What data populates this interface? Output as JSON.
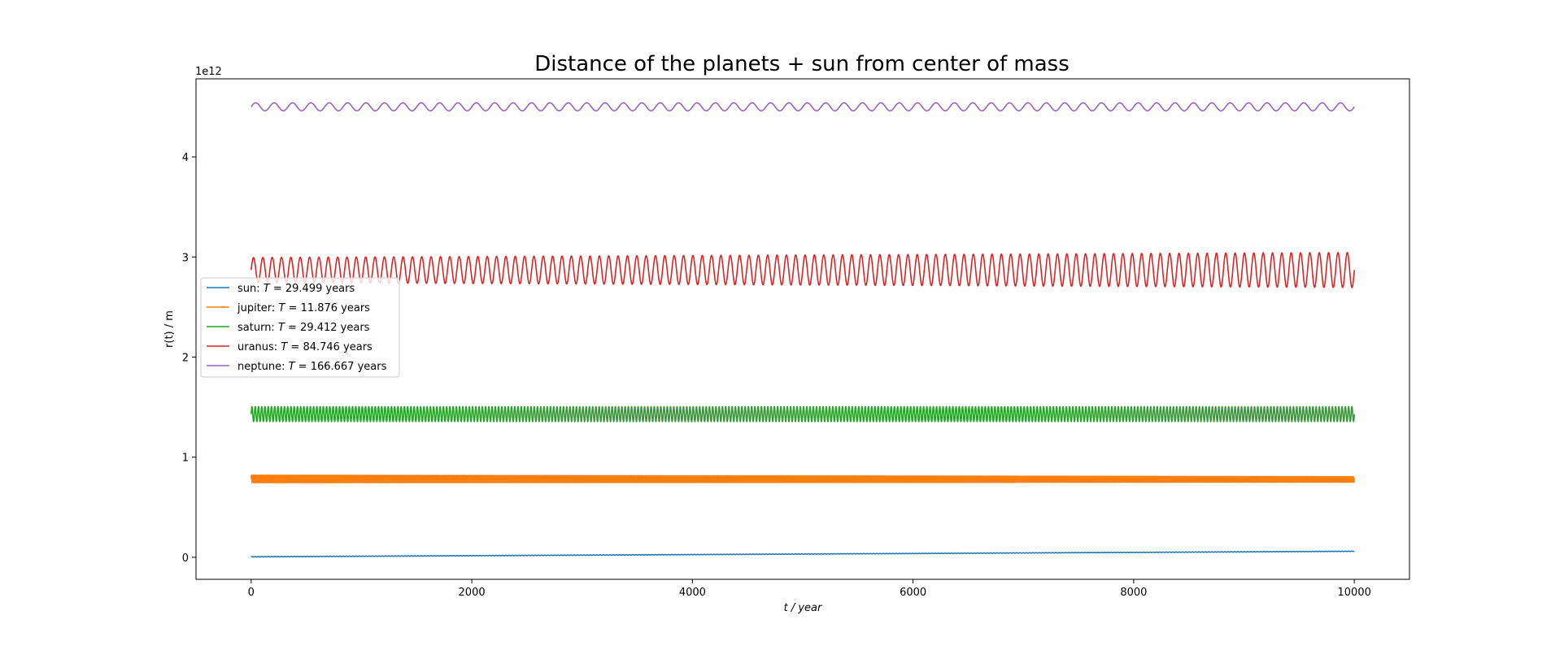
{
  "chart_data": {
    "type": "line",
    "title": "Distance of the planets + sun from center of mass",
    "xlabel": "t / year",
    "ylabel": "r(t) / m",
    "offset_text": "1e12",
    "xlim": [
      -500,
      10500
    ],
    "ylim": [
      -220000000000.0,
      4780000000000.0
    ],
    "x_ticks": [
      0,
      2000,
      4000,
      6000,
      8000,
      10000
    ],
    "x_tick_labels": [
      "0",
      "2000",
      "4000",
      "6000",
      "8000",
      "10000"
    ],
    "y_ticks": [
      0,
      1000000000000.0,
      2000000000000.0,
      3000000000000.0,
      4000000000000.0
    ],
    "y_tick_labels": [
      "0",
      "1",
      "2",
      "3",
      "4"
    ],
    "grid": false,
    "legend_position": "center-left",
    "x_range": [
      0,
      10000
    ],
    "series": [
      {
        "name": "sun",
        "legend_label": "sun: T = 29.499 years",
        "legend_prefix": "sun: ",
        "legend_suffix": " = 29.499 years",
        "period": 29.499,
        "color": "#1f77b4",
        "mean_start": 5000000000.0,
        "mean_end": 60000000000.0,
        "amp_start": 2000000000.0,
        "amp_end": 2000000000.0
      },
      {
        "name": "jupiter",
        "legend_label": "jupiter: T = 11.876 years",
        "legend_prefix": "jupiter: ",
        "legend_suffix": " = 11.876 years",
        "period": 11.876,
        "color": "#ff7f0e",
        "mean_start": 783000000000.0,
        "mean_end": 778000000000.0,
        "amp_start": 38000000000.0,
        "amp_end": 28000000000.0
      },
      {
        "name": "saturn",
        "legend_label": "saturn: T = 29.412 years",
        "legend_prefix": "saturn: ",
        "legend_suffix": " = 29.412 years",
        "period": 29.412,
        "color": "#2ca02c",
        "mean_start": 1430000000000.0,
        "mean_end": 1430000000000.0,
        "amp_start": 75000000000.0,
        "amp_end": 75000000000.0
      },
      {
        "name": "uranus",
        "legend_label": "uranus: T = 84.746 years",
        "legend_prefix": "uranus: ",
        "legend_suffix": " = 84.746 years",
        "period": 84.746,
        "color": "#d62728",
        "mean_start": 2870000000000.0,
        "mean_end": 2870000000000.0,
        "amp_start": 125000000000.0,
        "amp_end": 175000000000.0
      },
      {
        "name": "neptune",
        "legend_label": "neptune: T = 166.667 years",
        "legend_prefix": "neptune: ",
        "legend_suffix": " = 166.667 years",
        "period": 166.667,
        "color": "#9467bd",
        "mean_start": 4500000000000.0,
        "mean_end": 4500000000000.0,
        "amp_start": 40000000000.0,
        "amp_end": 40000000000.0
      }
    ]
  }
}
